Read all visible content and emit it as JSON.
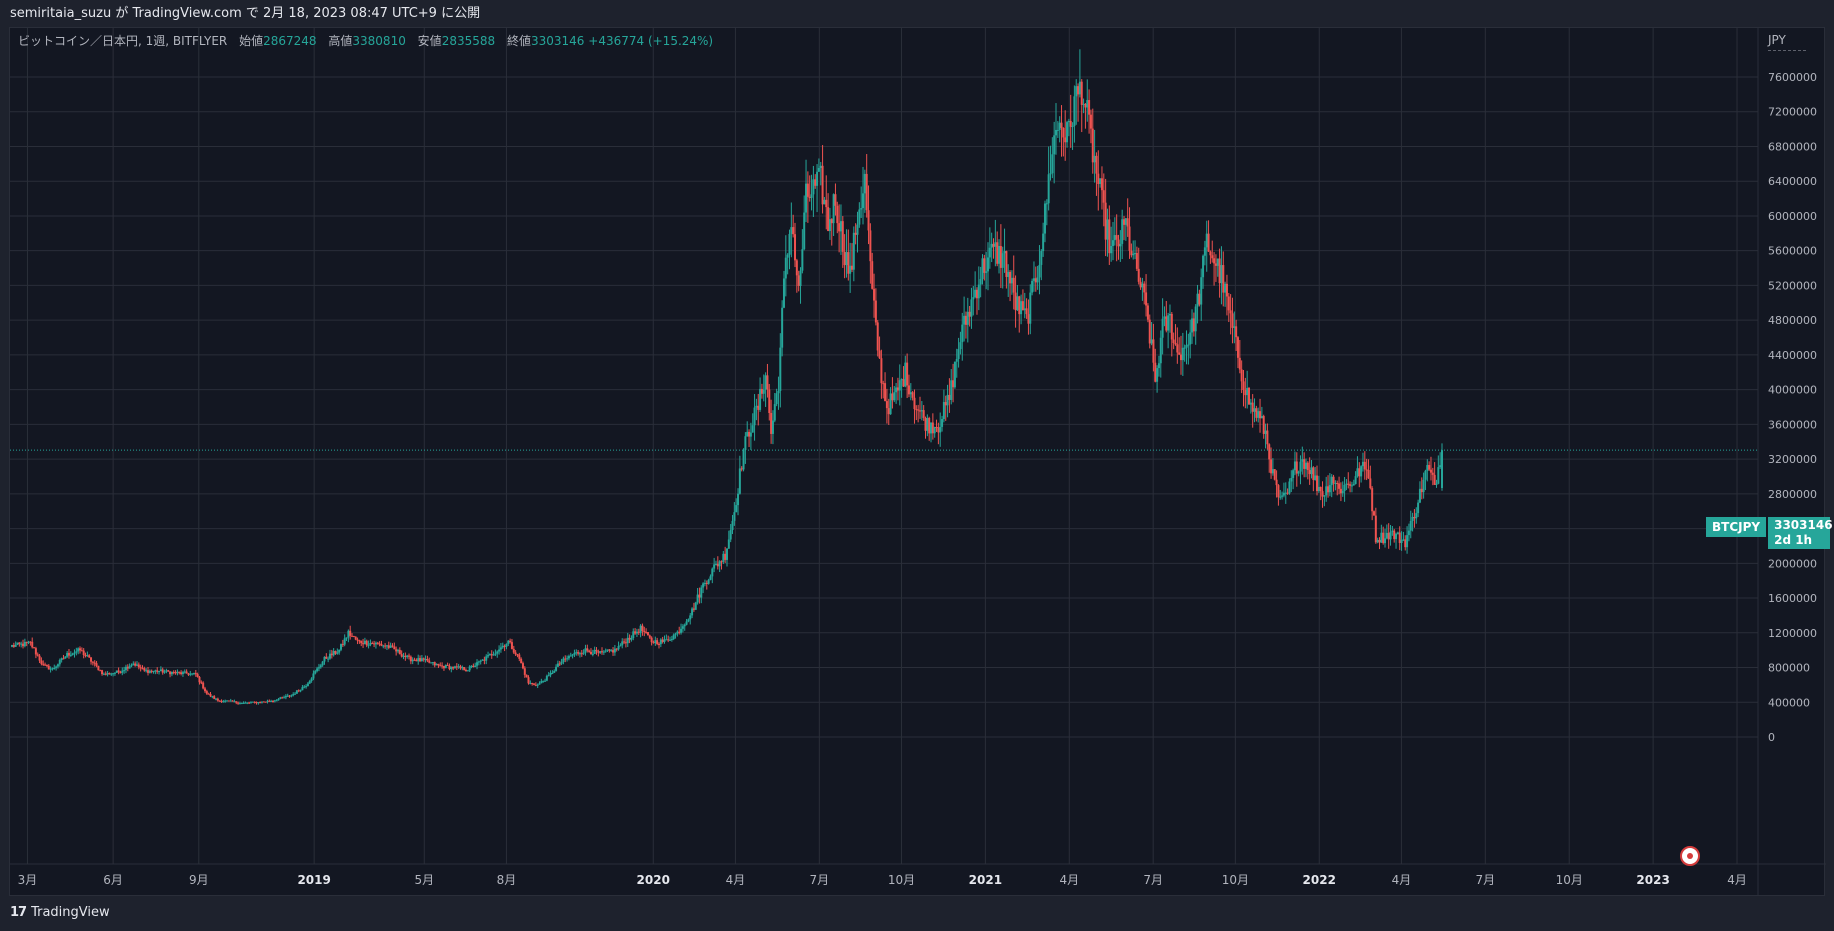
{
  "header": {
    "publish_line": "semiritaia_suzu が TradingView.com で 2月 18, 2023 08:47 UTC+9 に公開"
  },
  "legend": {
    "symbol_line": "ビットコイン／日本円, 1週, BITFLYER",
    "open_label": "始値",
    "open": "2867248",
    "high_label": "高値",
    "high": "3380810",
    "low_label": "安値",
    "low": "2835588",
    "close_label": "終値",
    "close": "3303146",
    "change": "+436774 (+15.24%)"
  },
  "price_axis": {
    "currency": "JPY"
  },
  "price_tag": {
    "ticker": "BTCJPY",
    "price": "3303146",
    "countdown": "2d 1h"
  },
  "footer": {
    "brand": "TradingView",
    "brand_mark": "17"
  },
  "colors": {
    "up": "#26a69a",
    "down": "#ef5350",
    "background": "#131722",
    "grid": "#2a2e39",
    "axis_text": "#b2b5be"
  },
  "chart_data": {
    "type": "candlestick",
    "interval": "1W",
    "symbol": "BTCJPY",
    "ylim": [
      0,
      7800000
    ],
    "y_ticks": [
      0,
      400000,
      800000,
      1200000,
      1600000,
      2000000,
      2400000,
      2800000,
      3200000,
      3600000,
      4000000,
      4400000,
      4800000,
      5200000,
      5600000,
      6000000,
      6400000,
      6800000,
      7200000,
      7600000
    ],
    "x_ticks": [
      {
        "label": "3月",
        "bold": false,
        "frac": 0.01
      },
      {
        "label": "6月",
        "bold": false,
        "frac": 0.059
      },
      {
        "label": "9月",
        "bold": false,
        "frac": 0.108
      },
      {
        "label": "2019",
        "bold": true,
        "frac": 0.174
      },
      {
        "label": "5月",
        "bold": false,
        "frac": 0.237
      },
      {
        "label": "8月",
        "bold": false,
        "frac": 0.284
      },
      {
        "label": "2020",
        "bold": true,
        "frac": 0.368
      },
      {
        "label": "4月",
        "bold": false,
        "frac": 0.415
      },
      {
        "label": "7月",
        "bold": false,
        "frac": 0.463
      },
      {
        "label": "10月",
        "bold": false,
        "frac": 0.51
      },
      {
        "label": "2021",
        "bold": true,
        "frac": 0.558
      },
      {
        "label": "4月",
        "bold": false,
        "frac": 0.606
      },
      {
        "label": "7月",
        "bold": false,
        "frac": 0.654
      },
      {
        "label": "10月",
        "bold": false,
        "frac": 0.701
      },
      {
        "label": "2022",
        "bold": true,
        "frac": 0.749
      },
      {
        "label": "4月",
        "bold": false,
        "frac": 0.796
      },
      {
        "label": "7月",
        "bold": false,
        "frac": 0.844
      },
      {
        "label": "10月",
        "bold": false,
        "frac": 0.892
      },
      {
        "label": "2023",
        "bold": true,
        "frac": 0.94
      },
      {
        "label": "4月",
        "bold": false,
        "frac": 0.988
      }
    ],
    "current_price": 3303146,
    "path": [
      [
        1,
        1050000
      ],
      [
        10,
        1080000
      ],
      [
        17,
        820000
      ],
      [
        22,
        780000
      ],
      [
        30,
        950000
      ],
      [
        37,
        1000000
      ],
      [
        42,
        900000
      ],
      [
        50,
        720000
      ],
      [
        58,
        750000
      ],
      [
        66,
        850000
      ],
      [
        72,
        760000
      ],
      [
        80,
        760000
      ],
      [
        88,
        740000
      ],
      [
        96,
        730000
      ],
      [
        100,
        720000
      ],
      [
        106,
        500000
      ],
      [
        112,
        420000
      ],
      [
        118,
        410000
      ],
      [
        126,
        390000
      ],
      [
        134,
        400000
      ],
      [
        142,
        420000
      ],
      [
        152,
        480000
      ],
      [
        160,
        600000
      ],
      [
        170,
        900000
      ],
      [
        178,
        1000000
      ],
      [
        183,
        1200000
      ],
      [
        188,
        1100000
      ],
      [
        196,
        1080000
      ],
      [
        204,
        1050000
      ],
      [
        210,
        980000
      ],
      [
        216,
        900000
      ],
      [
        224,
        880000
      ],
      [
        232,
        820000
      ],
      [
        240,
        800000
      ],
      [
        248,
        780000
      ],
      [
        256,
        880000
      ],
      [
        264,
        1000000
      ],
      [
        270,
        1100000
      ],
      [
        276,
        900000
      ],
      [
        281,
        620000
      ],
      [
        286,
        600000
      ],
      [
        292,
        700000
      ],
      [
        298,
        850000
      ],
      [
        305,
        950000
      ],
      [
        312,
        1000000
      ],
      [
        320,
        960000
      ],
      [
        328,
        1000000
      ],
      [
        335,
        1130000
      ],
      [
        342,
        1250000
      ],
      [
        348,
        1100000
      ],
      [
        355,
        1100000
      ],
      [
        362,
        1200000
      ],
      [
        370,
        1450000
      ],
      [
        376,
        1750000
      ],
      [
        382,
        1950000
      ],
      [
        388,
        2100000
      ],
      [
        393,
        2600000
      ],
      [
        398,
        3300000
      ],
      [
        402,
        3600000
      ],
      [
        406,
        3800000
      ],
      [
        410,
        4200000
      ],
      [
        413,
        3500000
      ],
      [
        417,
        4100000
      ],
      [
        420,
        5200000
      ],
      [
        424,
        6000000
      ],
      [
        428,
        5100000
      ],
      [
        432,
        6200000
      ],
      [
        436,
        6300000
      ],
      [
        440,
        6400000
      ],
      [
        444,
        5900000
      ],
      [
        448,
        6200000
      ],
      [
        452,
        5700000
      ],
      [
        456,
        5300000
      ],
      [
        460,
        6000000
      ],
      [
        464,
        6400000
      ],
      [
        468,
        5100000
      ],
      [
        472,
        4300000
      ],
      [
        476,
        3800000
      ],
      [
        480,
        3900000
      ],
      [
        486,
        4200000
      ],
      [
        492,
        3800000
      ],
      [
        498,
        3600000
      ],
      [
        504,
        3600000
      ],
      [
        510,
        3900000
      ],
      [
        516,
        4600000
      ],
      [
        522,
        5000000
      ],
      [
        528,
        5400000
      ],
      [
        534,
        5600000
      ],
      [
        540,
        5500000
      ],
      [
        546,
        5000000
      ],
      [
        552,
        4800000
      ],
      [
        558,
        5400000
      ],
      [
        562,
        6000000
      ],
      [
        566,
        6800000
      ],
      [
        570,
        7100000
      ],
      [
        574,
        6900000
      ],
      [
        578,
        7300000
      ],
      [
        582,
        7500000
      ],
      [
        586,
        7000000
      ],
      [
        590,
        6500000
      ],
      [
        594,
        6000000
      ],
      [
        598,
        5600000
      ],
      [
        602,
        5700000
      ],
      [
        606,
        5900000
      ],
      [
        610,
        5500000
      ],
      [
        614,
        5200000
      ],
      [
        618,
        4800000
      ],
      [
        622,
        4100000
      ],
      [
        626,
        4700000
      ],
      [
        630,
        4800000
      ],
      [
        634,
        4400000
      ],
      [
        638,
        4500000
      ],
      [
        642,
        4700000
      ],
      [
        646,
        5100000
      ],
      [
        650,
        5700000
      ],
      [
        654,
        5500000
      ],
      [
        658,
        5300000
      ],
      [
        662,
        4900000
      ],
      [
        666,
        4500000
      ],
      [
        670,
        4100000
      ],
      [
        674,
        3800000
      ],
      [
        678,
        3700000
      ],
      [
        682,
        3500000
      ],
      [
        686,
        3000000
      ],
      [
        690,
        2700000
      ],
      [
        694,
        2800000
      ],
      [
        698,
        3100000
      ],
      [
        702,
        3200000
      ],
      [
        706,
        3100000
      ],
      [
        710,
        2900000
      ],
      [
        714,
        2800000
      ],
      [
        718,
        3000000
      ],
      [
        722,
        2850000
      ],
      [
        726,
        2900000
      ],
      [
        730,
        2950000
      ],
      [
        734,
        3100000
      ],
      [
        738,
        3050000
      ],
      [
        742,
        2300000
      ],
      [
        746,
        2300000
      ],
      [
        750,
        2350000
      ],
      [
        754,
        2300000
      ],
      [
        758,
        2250000
      ],
      [
        762,
        2500000
      ],
      [
        766,
        2800000
      ],
      [
        770,
        3100000
      ],
      [
        774,
        2900000
      ],
      [
        778,
        3303146
      ]
    ]
  }
}
